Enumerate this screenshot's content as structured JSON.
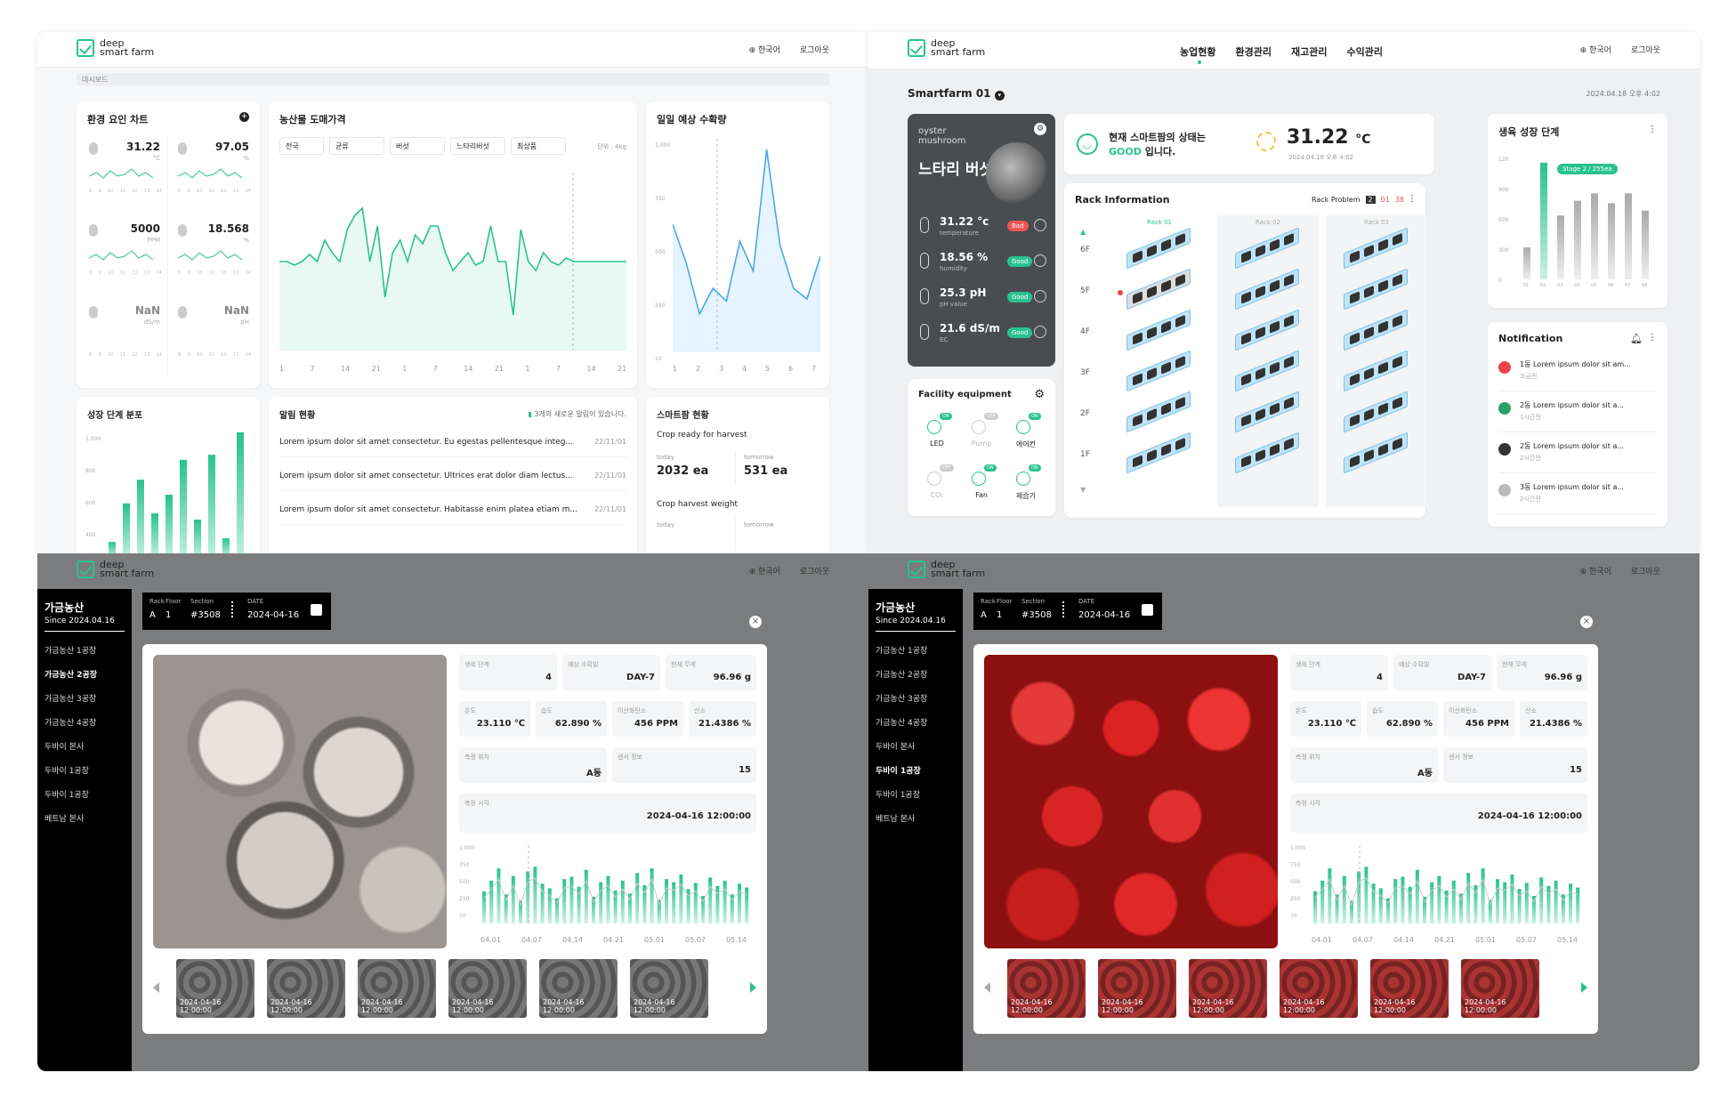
{
  "common": {
    "logo_line1": "deep",
    "logo_line2": "smart farm",
    "lang": "한국어",
    "logout": "로그아웃"
  },
  "dashboard": {
    "breadcrumb": "대시보드",
    "env_title": "환경 요인 차트",
    "env_cells": [
      {
        "value": "31.22",
        "unit": "°C",
        "icon": "thermometer-icon"
      },
      {
        "value": "97.05",
        "unit": "%",
        "icon": "droplet-icon"
      },
      {
        "value": "5000",
        "unit": "PPM",
        "icon": "co2-icon"
      },
      {
        "value": "18.568",
        "unit": "%",
        "icon": "wind-icon"
      },
      {
        "value": "NaN",
        "unit": "dS/m",
        "icon": "cloud-icon"
      },
      {
        "value": "NaN",
        "unit": "pH",
        "icon": "dropper-icon"
      }
    ],
    "env_ticks": [
      "8",
      "9",
      "10",
      "11",
      "12",
      "13",
      "14"
    ],
    "price_title": "농산물 도매가격",
    "price_filters": [
      "전국",
      "균류",
      "버섯",
      "느타리버섯",
      "최상품"
    ],
    "price_unit": "단위 : 4kg",
    "price_xticks": [
      "1",
      "7",
      "14",
      "21",
      "1",
      "7",
      "14",
      "21",
      "1",
      "7",
      "14",
      "21"
    ],
    "price_series": [
      50,
      50,
      48,
      50,
      54,
      50,
      62,
      55,
      50,
      68,
      76,
      80,
      50,
      70,
      30,
      55,
      62,
      50,
      65,
      60,
      70,
      70,
      55,
      45,
      50,
      55,
      48,
      50,
      70,
      50,
      50,
      20,
      68,
      50,
      45,
      55,
      50,
      48,
      52,
      50,
      50,
      50,
      50,
      50,
      50,
      50,
      50
    ],
    "harvest_title": "일일 예상 수확량",
    "harvest_yticks": [
      "1,000",
      "750",
      "500",
      "250",
      "10"
    ],
    "harvest_xticks": [
      "1",
      "2",
      "3",
      "4",
      "5",
      "6",
      "7"
    ],
    "harvest_series": [
      600,
      420,
      180,
      300,
      240,
      520,
      380,
      950,
      500,
      300,
      250,
      450
    ],
    "growth_title": "성장 단계 분포",
    "growth_yticks": [
      "1,000",
      "800",
      "600",
      "400"
    ],
    "growth_bars": [
      120,
      430,
      620,
      350,
      500,
      780,
      300,
      820,
      150,
      1000
    ],
    "alarm_title": "알림 현황",
    "alarm_new": "3개의 새로운 알림이 있습니다.",
    "alarm_items": [
      {
        "text": "Lorem ipsum dolor sit amet consectetur. Eu egestas pellentesque integ...",
        "date": "22/11/01"
      },
      {
        "text": "Lorem ipsum dolor sit amet consectetur. Ultrices erat dolor diam lectus...",
        "date": "22/11/01"
      },
      {
        "text": "Lorem ipsum dolor sit amet consectetur. Habitasse enim platea etiam m...",
        "date": "22/11/01"
      }
    ],
    "sf_title": "스마트팜 현황",
    "sf_ready": "Crop ready for harvest",
    "sf_today": "today",
    "sf_tomorrow": "tomorrow",
    "sf_today_val": "2032 ea",
    "sf_tomorrow_val": "531 ea",
    "sf_weight": "Crop harvest weight"
  },
  "farm": {
    "nav": [
      "농업현황",
      "환경관리",
      "재고관리",
      "수익관리"
    ],
    "farm_name": "Smartfarm 01",
    "datetime": "2024.04.18 오후 4:02",
    "crop_en": "oyster mushroom",
    "crop_kr": "느타리 버섯",
    "metrics": [
      {
        "value": "31.22",
        "unit": "°c",
        "label": "temperature",
        "status": "Bad",
        "color": "#e55"
      },
      {
        "value": "18.56",
        "unit": "%",
        "label": "humidity",
        "status": "Good",
        "color": "#29c28e"
      },
      {
        "value": "25.3",
        "unit": "pH",
        "label": "pH value",
        "status": "Good",
        "color": "#29c28e"
      },
      {
        "value": "21.6",
        "unit": "dS/m",
        "label": "EC",
        "status": "Good",
        "color": "#29c28e"
      }
    ],
    "status_line1": "현재 스마트팜의 상태는",
    "status_good": "GOOD",
    "status_line2": " 입니다.",
    "temp_big": "31.22",
    "temp_unit": "°C",
    "temp_time": "2024.04.18 오후 4:02",
    "rack_title": "Rack Information",
    "rack_problem": "Rack Problem",
    "rack_problem_vals": [
      "2",
      "01",
      "38"
    ],
    "rack_cols": [
      "Rack 01",
      "Rack 02",
      "Rack 03"
    ],
    "floors": [
      "6F",
      "5F",
      "4F",
      "3F",
      "2F",
      "1F"
    ],
    "facility_title": "Facility equipment",
    "facility": [
      {
        "label": "LED",
        "state": "ON"
      },
      {
        "label": "Pump",
        "state": "OFF"
      },
      {
        "label": "에어컨",
        "state": "ON"
      },
      {
        "label": "CO₂",
        "state": "OFF"
      },
      {
        "label": "Fan",
        "state": "ON"
      },
      {
        "label": "제습기",
        "state": "ON"
      }
    ],
    "growth_title": "생육 성장 단계",
    "growth_tooltip": "Stage 2 / 255ea",
    "growth_yticks": [
      "120",
      "900",
      "600",
      "300",
      "0"
    ],
    "growth_xticks": [
      "01",
      "02",
      "03",
      "04",
      "05",
      "06",
      "07",
      "08"
    ],
    "growth_bars": [
      260,
      950,
      520,
      640,
      700,
      620,
      700,
      560
    ],
    "notif_title": "Notification",
    "notifs": [
      {
        "title": "1동",
        "text": "Lorem ipsum dolor sit am...",
        "time": "조금전",
        "icon": "alert-icon"
      },
      {
        "title": "2동",
        "text": "Lorem ipsum dolor sit a...",
        "time": "1시간전",
        "icon": "bug-icon"
      },
      {
        "title": "2동",
        "text": "Lorem ipsum dolor sit a...",
        "time": "2시간전",
        "icon": "wrench-icon"
      },
      {
        "title": "3동",
        "text": "Lorem ipsum dolor sit a...",
        "time": "2시간전",
        "icon": "info-icon"
      }
    ]
  },
  "detail": {
    "sb_title": "가금농산",
    "sb_since": "Since 2024.04.16",
    "sb_items": [
      "가금농산 1공장",
      "가금농산 2공장",
      "가금농산 3공장",
      "가금농산 4공장",
      "두바이 본사",
      "두바이 1공장",
      "두바이 1공장",
      "베트남 본사"
    ],
    "rfs_labels": [
      "Rack",
      "Floor",
      "Section",
      "DATE"
    ],
    "rfs_values": [
      "A",
      "1",
      "#3508",
      "2024-04-16"
    ],
    "fields": [
      {
        "label": "생육 단계",
        "value": "4"
      },
      {
        "label": "예상 수확일",
        "value": "DAY-7"
      },
      {
        "label": "현재 무게",
        "value": "96.96 g"
      },
      {
        "label": "온도",
        "value": "23.110 ℃"
      },
      {
        "label": "습도",
        "value": "62.890 %"
      },
      {
        "label": "이산화탄소",
        "value": "456 PPM"
      },
      {
        "label": "산소",
        "value": "21.4386 %"
      },
      {
        "label": "측정 위치",
        "value": "A동"
      },
      {
        "label": "센서 정보",
        "value": "15"
      },
      {
        "label": "측정 시각",
        "value": "2024-04-16 12:00:00"
      }
    ],
    "chart_yticks": [
      "1,000",
      "750",
      "500",
      "250",
      "10"
    ],
    "chart_xticks": [
      "04.01",
      "04.07",
      "04.14",
      "04.21",
      "05.01",
      "05.07",
      "05.14"
    ],
    "chart_bars": [
      420,
      560,
      720,
      380,
      620,
      300,
      680,
      740,
      520,
      460,
      330,
      580,
      610,
      480,
      700,
      350,
      540,
      620,
      430,
      560,
      390,
      660,
      500,
      720,
      310,
      580,
      540,
      640,
      450,
      530,
      360,
      600,
      490,
      560,
      380,
      520,
      470
    ],
    "thumb_label": "2024-04-16 12:00:00",
    "left_sb_active": 1,
    "right_sb_active": 5
  }
}
